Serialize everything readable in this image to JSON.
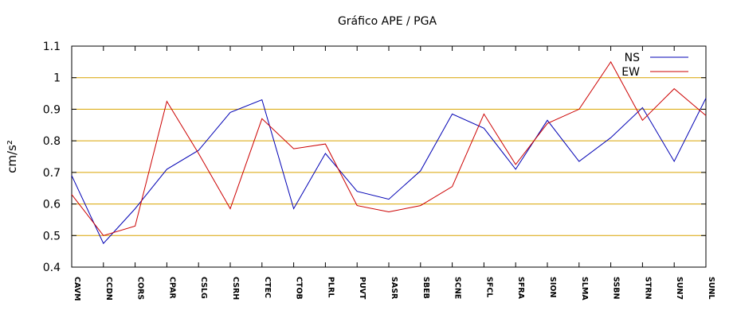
{
  "chart_data": {
    "type": "line",
    "title": "Gráfico  APE / PGA",
    "xlabel": "",
    "ylabel": "cm/s²",
    "ylim": [
      0.4,
      1.1
    ],
    "yticks": [
      0.4,
      0.5,
      0.6,
      0.7,
      0.8,
      0.9,
      1,
      1.1
    ],
    "ytick_labels": [
      "0.4",
      "0.5",
      "0.6",
      "0.7",
      "0.8",
      "0.9",
      "1",
      "1.1"
    ],
    "grid": "horizontal",
    "legend": "top-right",
    "categories": [
      "CAVM",
      "CCDN",
      "CORS",
      "CPAR",
      "CSLG",
      "CSRH",
      "CTEC",
      "CTOB",
      "PLRL",
      "PUVT",
      "SASR",
      "SBEB",
      "SCNE",
      "SFCL",
      "SFRA",
      "SION",
      "SLMA",
      "SSBN",
      "STRN",
      "SUN7",
      "SUNL"
    ],
    "series": [
      {
        "name": "NS",
        "color": "#0000b4",
        "values": [
          0.69,
          0.475,
          0.585,
          0.71,
          0.77,
          0.89,
          0.93,
          0.585,
          0.76,
          0.64,
          0.615,
          0.705,
          0.885,
          0.84,
          0.71,
          0.865,
          0.735,
          0.81,
          0.905,
          0.735,
          0.935
        ]
      },
      {
        "name": "EW",
        "color": "#cc0000",
        "values": [
          0.63,
          0.5,
          0.53,
          0.925,
          0.76,
          0.585,
          0.87,
          0.775,
          0.79,
          0.595,
          0.575,
          0.595,
          0.655,
          0.885,
          0.725,
          0.855,
          0.9,
          1.05,
          0.865,
          0.965,
          0.88
        ]
      }
    ],
    "colors": {
      "grid": "#d9a400",
      "axis": "#000000"
    }
  }
}
